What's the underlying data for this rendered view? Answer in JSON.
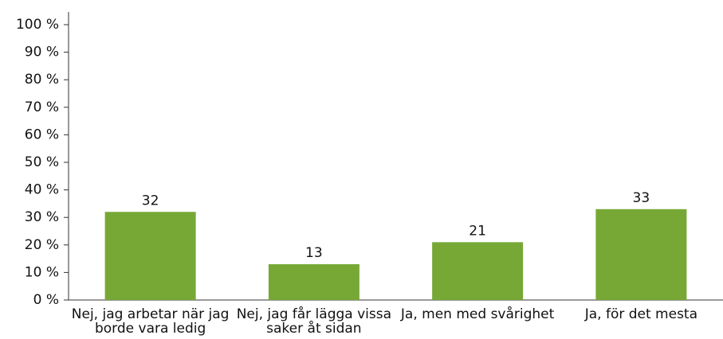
{
  "chart_data": {
    "type": "bar",
    "categories": [
      "Nej, jag arbetar när jag borde vara ledig",
      "Nej, jag får lägga vissa saker åt sidan",
      "Ja, men med svårighet",
      "Ja, för det mesta"
    ],
    "values": [
      32,
      13,
      21,
      33
    ],
    "color": "#77a836",
    "ylim": [
      0,
      100
    ],
    "yticks": [
      {
        "value": 0,
        "label": "0 %"
      },
      {
        "value": 10,
        "label": "10 %"
      },
      {
        "value": 20,
        "label": "20 %"
      },
      {
        "value": 30,
        "label": "30 %"
      },
      {
        "value": 40,
        "label": "40 %"
      },
      {
        "value": 50,
        "label": "50 %"
      },
      {
        "value": 60,
        "label": "60 %"
      },
      {
        "value": 70,
        "label": "70 %"
      },
      {
        "value": 80,
        "label": "80 %"
      },
      {
        "value": 90,
        "label": "90 %"
      },
      {
        "value": 100,
        "label": "100 %"
      }
    ],
    "grid": false
  }
}
